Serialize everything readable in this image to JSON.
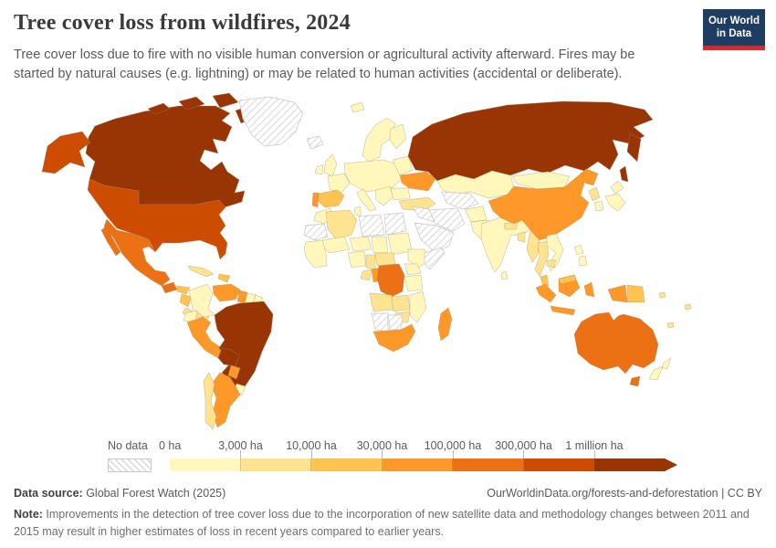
{
  "header": {
    "title": "Tree cover loss from wildfires, 2024",
    "subtitle": "Tree cover loss due to fire with no visible human conversion or agricultural activity afterward. Fires may be started by natural causes (e.g. lightning) or may be related to human activities (accidental or deliberate).",
    "logo": {
      "line1": "Our World",
      "line2": "in Data",
      "bg_color": "#1d3d63",
      "accent_color": "#d42b2f"
    }
  },
  "legend": {
    "no_data_label": "No data",
    "tick_labels": [
      "0 ha",
      "3,000 ha",
      "10,000 ha",
      "30,000 ha",
      "100,000 ha",
      "300,000 ha",
      "1 million ha"
    ]
  },
  "footer": {
    "source_label": "Data source:",
    "source_text": " Global Forest Watch (2025)",
    "link_text": "OurWorldinData.org/forests-and-deforestation | CC BY",
    "note_label": "Note:",
    "note_text": " Improvements in the detection of tree cover loss due to the incorporation of new satellite data and methodology changes between 2011 and 2015 may result in higher estimates of loss in recent years compared to earlier years."
  },
  "chart_data": {
    "type": "heatmap",
    "subtype": "choropleth_world_map",
    "title": "Tree cover loss from wildfires, 2024",
    "unit": "ha",
    "year": 2024,
    "legend_position": "bottom",
    "legend_thresholds": [
      "0 ha",
      "3,000 ha",
      "10,000 ha",
      "30,000 ha",
      "100,000 ha",
      "300,000 ha",
      "1 million ha"
    ],
    "bin_order": [
      "0-3k",
      "3k-10k",
      "10k-30k",
      "30k-100k",
      "100k-300k",
      "300k-1M",
      "1M+"
    ],
    "bins": {
      "0-3k": "#fff7bc",
      "3k-10k": "#fee391",
      "10k-30k": "#fec44f",
      "30k-100k": "#fe9929",
      "100k-300k": "#ec7014",
      "300k-1M": "#cc4c02",
      "1M+": "#993404",
      "no-data": "hatch"
    },
    "bin_ranges": {
      "0-3k": "0 – 3,000 ha",
      "3k-10k": "3,000 – 10,000 ha",
      "10k-30k": "10,000 – 30,000 ha",
      "30k-100k": "30,000 – 100,000 ha",
      "100k-300k": "100,000 – 300,000 ha",
      "300k-1M": "300,000 – 1 million ha",
      "1M+": "more than 1 million ha",
      "no-data": "No data"
    },
    "regions": {
      "canada": "1M+",
      "russia": "1M+",
      "brazil": "1M+",
      "bolivia": "1M+",
      "united-states": "300k-1M",
      "mexico": "100k-300k",
      "guatemala": "100k-300k",
      "drc": "100k-300k",
      "australia": "100k-300k",
      "venezuela": "30k-100k",
      "guyana": "30k-100k",
      "peru": "30k-100k",
      "paraguay": "30k-100k",
      "argentina": "30k-100k",
      "ukraine": "30k-100k",
      "portugal": "30k-100k",
      "congo": "30k-100k",
      "south-africa": "30k-100k",
      "madagascar": "30k-100k",
      "china": "30k-100k",
      "indonesia": "30k-100k",
      "spain": "10k-30k",
      "honduras": "10k-30k",
      "nicaragua": "10k-30k",
      "hispaniola": "10k-30k",
      "malaysia": "10k-30k",
      "papua-new-guinea": "10k-30k",
      "chile": "3k-10k",
      "cuba": "3k-10k",
      "costa-rica-panama": "3k-10k",
      "algeria": "3k-10k",
      "turkey": "3k-10k",
      "angola": "3k-10k",
      "zambia": "3k-10k",
      "zimbabwe": "3k-10k",
      "gabon": "3k-10k",
      "cameroon": "3k-10k",
      "central-african-republic": "3k-10k",
      "north-korea": "3k-10k",
      "myanmar": "3k-10k",
      "thailand": "3k-10k",
      "cambodia": "3k-10k",
      "nepal": "3k-10k",
      "bangladesh": "3k-10k",
      "pacific-islands": "3k-10k",
      "colombia": "0-3k",
      "ecuador": "0-3k",
      "suriname": "0-3k",
      "french-guiana": "0-3k",
      "uruguay": "0-3k",
      "scandinavia": "0-3k",
      "finland": "0-3k",
      "uk": "0-3k",
      "ireland": "0-3k",
      "france": "0-3k",
      "central-europe": "0-3k",
      "baltics-belarus": "0-3k",
      "italy": "0-3k",
      "balkans": "0-3k",
      "romania-bulgaria": "0-3k",
      "svalbard": "0-3k",
      "morocco": "0-3k",
      "tunisia": "0-3k",
      "mali": "0-3k",
      "niger": "0-3k",
      "chad": "0-3k",
      "sudan": "0-3k",
      "west-africa": "0-3k",
      "nigeria": "0-3k",
      "ethiopia": "0-3k",
      "kenya-uganda": "0-3k",
      "tanzania": "0-3k",
      "mozambique-malawi": "0-3k",
      "kazakhstan": "0-3k",
      "afghanistan": "0-3k",
      "pakistan": "0-3k",
      "india": "0-3k",
      "sri-lanka": "0-3k",
      "mongolia": "0-3k",
      "south-korea": "0-3k",
      "japan": "0-3k",
      "vietnam-laos": "0-3k",
      "philippines": "0-3k",
      "new-zealand": "0-3k",
      "greenland": "no-data",
      "iceland": "no-data",
      "western-sahara-mauritania": "no-data",
      "libya": "no-data",
      "egypt": "no-data",
      "saudi-arabia": "no-data",
      "iraq-syria": "no-data",
      "iran": "no-data",
      "turkmenistan-uzbekistan": "no-data",
      "somalia": "no-data",
      "namibia": "no-data",
      "botswana": "no-data"
    }
  }
}
